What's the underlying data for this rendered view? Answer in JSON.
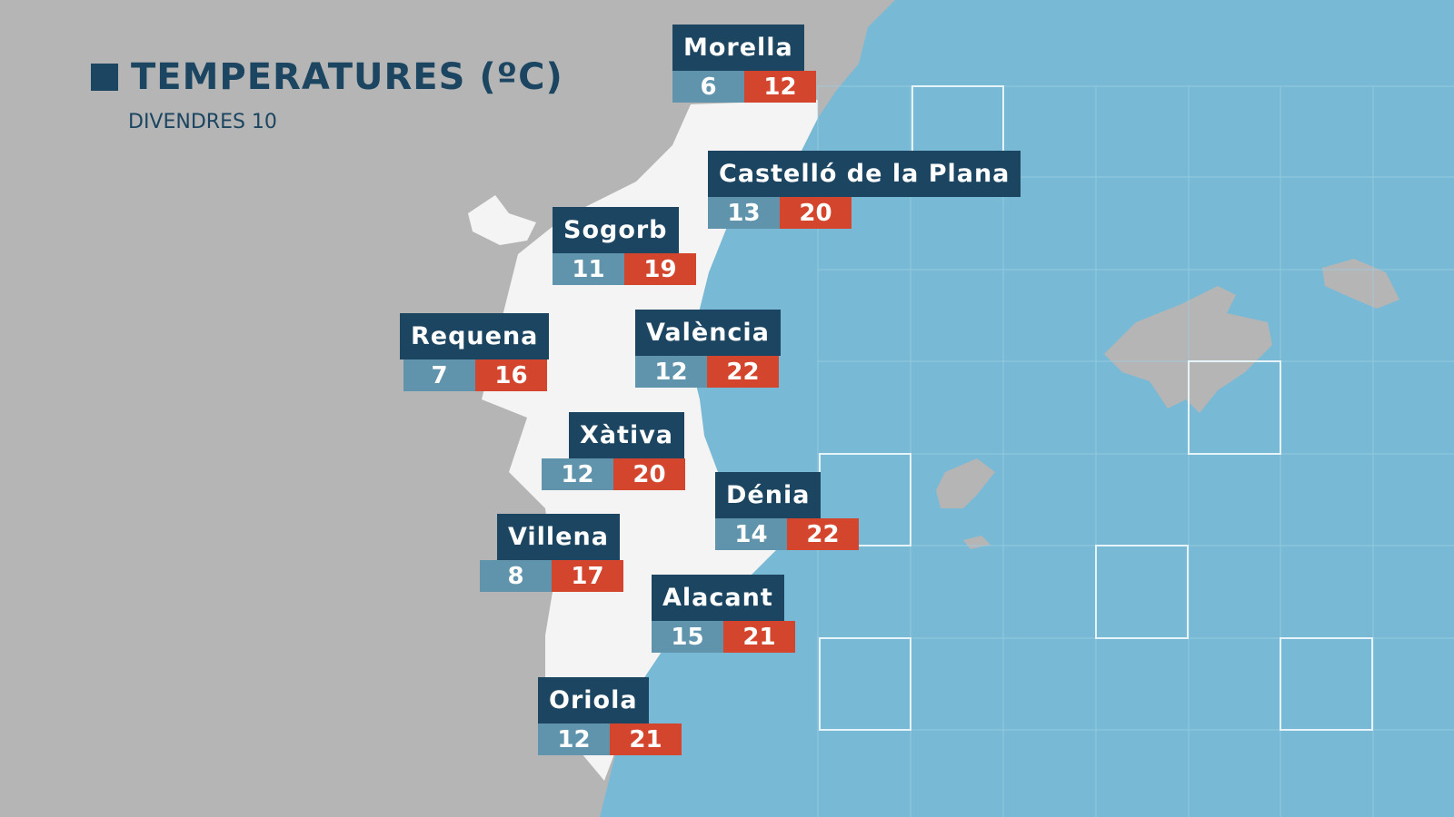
{
  "title": "TEMPERATURES (ºC)",
  "subtitle": "DIVENDRES 10",
  "cities": [
    {
      "name": "Morella",
      "min": 6,
      "max": 12
    },
    {
      "name": "Castelló de la Plana",
      "min": 13,
      "max": 20
    },
    {
      "name": "Sogorb",
      "min": 11,
      "max": 19
    },
    {
      "name": "Requena",
      "min": 7,
      "max": 16
    },
    {
      "name": "València",
      "min": 12,
      "max": 22
    },
    {
      "name": "Xàtiva",
      "min": 12,
      "max": 20
    },
    {
      "name": "Dénia",
      "min": 14,
      "max": 22
    },
    {
      "name": "Villena",
      "min": 8,
      "max": 17
    },
    {
      "name": "Alacant",
      "min": 15,
      "max": 21
    },
    {
      "name": "Oriola",
      "min": 12,
      "max": 21
    }
  ]
}
